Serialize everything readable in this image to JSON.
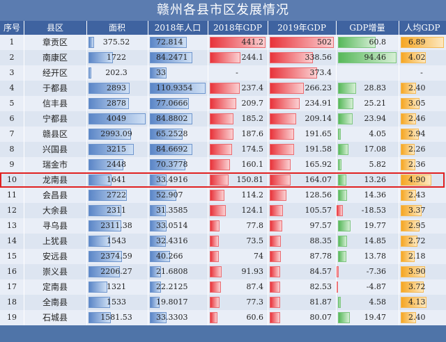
{
  "title": "赣州各县市区发展情况",
  "headers": [
    "序号",
    "县区",
    "面积",
    "2018年人口",
    "2018年GDP",
    "2019年GDP",
    "GDP增量",
    "人均GDP"
  ],
  "colors": {
    "area": "#5b86c7",
    "pop": "#5b86c7",
    "gdp2018": "#e8333a",
    "gdp2019": "#e8333a",
    "growth": "#57b85a",
    "percap": "#f5a623",
    "highlight": "#e02020"
  },
  "highlight_row": 10,
  "rows": [
    {
      "no": "1",
      "name": "章贡区",
      "area": "375.52",
      "pop": "72.814",
      "gdp2018": "441.2",
      "gdp2019": "502",
      "growth": "60.8",
      "percap": "6.89"
    },
    {
      "no": "2",
      "name": "南康区",
      "area": "1722",
      "pop": "84.2471",
      "gdp2018": "244.1",
      "gdp2019": "338.56",
      "growth": "94.46",
      "percap": "4.02"
    },
    {
      "no": "3",
      "name": "经开区",
      "area": "202.3",
      "pop": "33",
      "gdp2018": "-",
      "gdp2019": "373.4",
      "growth": "",
      "percap": "-"
    },
    {
      "no": "4",
      "name": "于都县",
      "area": "2893",
      "pop": "110.9354",
      "gdp2018": "237.4",
      "gdp2019": "266.23",
      "growth": "28.83",
      "percap": "2.40"
    },
    {
      "no": "5",
      "name": "信丰县",
      "area": "2878",
      "pop": "77.0666",
      "gdp2018": "209.7",
      "gdp2019": "234.91",
      "growth": "25.21",
      "percap": "3.05"
    },
    {
      "no": "6",
      "name": "宁都县",
      "area": "4049",
      "pop": "84.8802",
      "gdp2018": "185.2",
      "gdp2019": "209.14",
      "growth": "23.94",
      "percap": "2.46"
    },
    {
      "no": "7",
      "name": "赣县区",
      "area": "2993.09",
      "pop": "65.2528",
      "gdp2018": "187.6",
      "gdp2019": "191.65",
      "growth": "4.05",
      "percap": "2.94"
    },
    {
      "no": "8",
      "name": "兴国县",
      "area": "3215",
      "pop": "84.6692",
      "gdp2018": "174.5",
      "gdp2019": "191.58",
      "growth": "17.08",
      "percap": "2.26"
    },
    {
      "no": "9",
      "name": "瑞金市",
      "area": "2448",
      "pop": "70.3778",
      "gdp2018": "160.1",
      "gdp2019": "165.92",
      "growth": "5.82",
      "percap": "2.36"
    },
    {
      "no": "10",
      "name": "龙南县",
      "area": "1641",
      "pop": "33.4916",
      "gdp2018": "150.81",
      "gdp2019": "164.07",
      "growth": "13.26",
      "percap": "4.90"
    },
    {
      "no": "11",
      "name": "会昌县",
      "area": "2722",
      "pop": "52.907",
      "gdp2018": "114.2",
      "gdp2019": "128.56",
      "growth": "14.36",
      "percap": "2.43"
    },
    {
      "no": "12",
      "name": "大余县",
      "area": "2311",
      "pop": "31.3585",
      "gdp2018": "124.1",
      "gdp2019": "105.57",
      "growth": "-18.53",
      "percap": "3.37"
    },
    {
      "no": "13",
      "name": "寻乌县",
      "area": "2311.38",
      "pop": "33.0514",
      "gdp2018": "77.8",
      "gdp2019": "97.57",
      "growth": "19.77",
      "percap": "2.95"
    },
    {
      "no": "14",
      "name": "上犹县",
      "area": "1543",
      "pop": "32.4316",
      "gdp2018": "73.5",
      "gdp2019": "88.35",
      "growth": "14.85",
      "percap": "2.72"
    },
    {
      "no": "15",
      "name": "安远县",
      "area": "2374.59",
      "pop": "40.266",
      "gdp2018": "74",
      "gdp2019": "87.78",
      "growth": "13.78",
      "percap": "2.18"
    },
    {
      "no": "16",
      "name": "崇义县",
      "area": "2206.27",
      "pop": "21.6808",
      "gdp2018": "91.93",
      "gdp2019": "84.57",
      "growth": "-7.36",
      "percap": "3.90"
    },
    {
      "no": "17",
      "name": "定南县",
      "area": "1321",
      "pop": "22.2125",
      "gdp2018": "87.4",
      "gdp2019": "82.53",
      "growth": "-4.87",
      "percap": "3.72"
    },
    {
      "no": "18",
      "name": "全南县",
      "area": "1533",
      "pop": "19.8017",
      "gdp2018": "77.3",
      "gdp2019": "81.87",
      "growth": "4.58",
      "percap": "4.13"
    },
    {
      "no": "19",
      "name": "石城县",
      "area": "1581.53",
      "pop": "33.3303",
      "gdp2018": "60.6",
      "gdp2019": "80.07",
      "growth": "19.47",
      "percap": "2.40"
    }
  ],
  "chart_data": {
    "type": "table",
    "title": "赣州各县市区发展情况",
    "columns": [
      "序号",
      "县区",
      "面积",
      "2018年人口",
      "2018年GDP",
      "2019年GDP",
      "GDP增量",
      "人均GDP"
    ],
    "max": {
      "area": 4049,
      "pop": 110.9354,
      "gdp2018": 441.2,
      "gdp2019": 502,
      "growth": 94.46,
      "percap": 6.89,
      "growth_min": -18.53
    }
  }
}
